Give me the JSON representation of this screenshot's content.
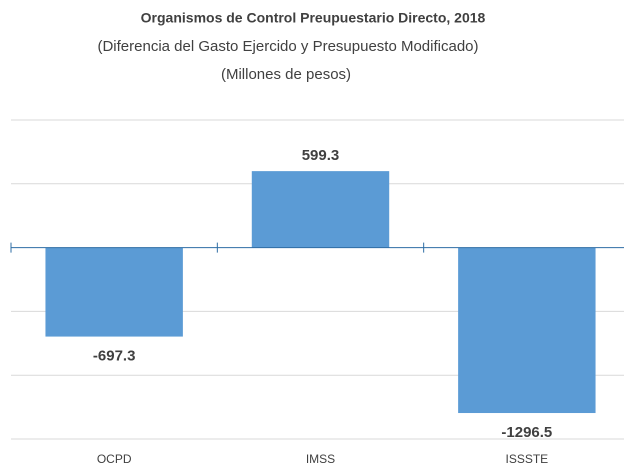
{
  "chart_data": {
    "type": "bar",
    "title": "Organismos de Control Preupuestario Directo, 2018",
    "subtitle": [
      "(Diferencia del Gasto Ejercido y Presupuesto Modificado)",
      "(Millones de pesos)"
    ],
    "categories": [
      "OCPD",
      "IMSS",
      "ISSSTE"
    ],
    "values": [
      -697.3,
      599.3,
      -1296.5
    ],
    "color": "#5b9bd5",
    "ylim": [
      -1500,
      1000
    ],
    "yticks": [
      -1500,
      -1000,
      -500,
      0,
      500,
      1000
    ],
    "grid": true
  }
}
